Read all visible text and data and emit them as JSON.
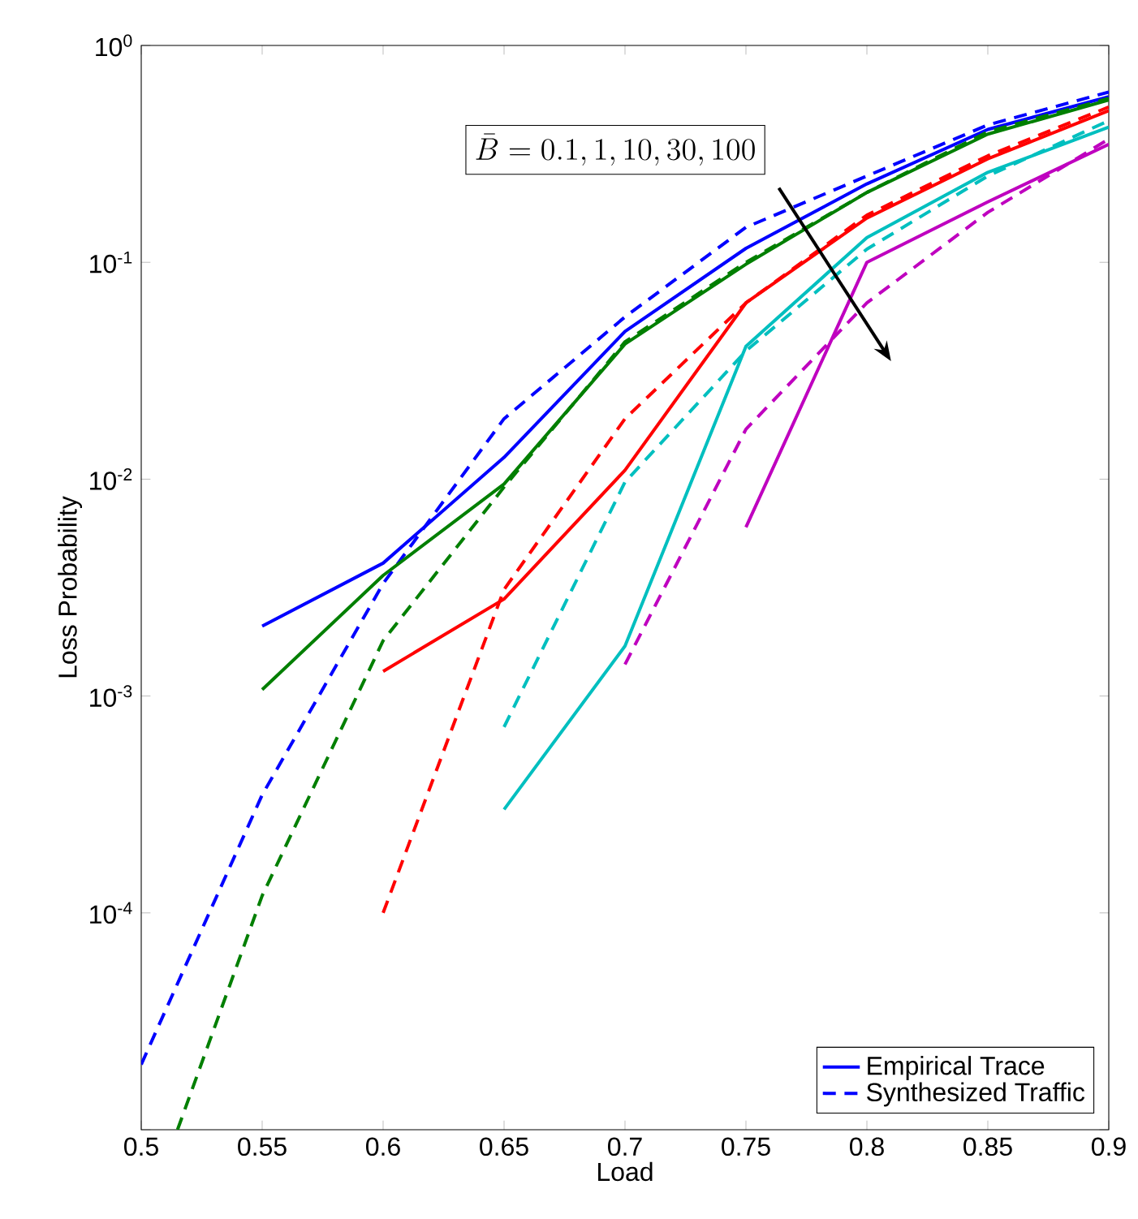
{
  "chart_data": {
    "type": "line",
    "xlabel": "Load",
    "ylabel": "Loss Probability",
    "log": "y",
    "xlim": [
      0.5,
      0.9
    ],
    "xticks": [
      0.5,
      0.55,
      0.6,
      0.65,
      0.7,
      0.75,
      0.8,
      0.85,
      0.9
    ],
    "ylim": [
      1e-05,
      1
    ],
    "yticks": [
      {
        "value": 1e-05,
        "label": null
      },
      {
        "value": 0.0001,
        "label": "10$^{-4}$"
      },
      {
        "value": 0.001,
        "label": "10$^{-3}$"
      },
      {
        "value": 0.01,
        "label": "10$^{-2}$"
      },
      {
        "value": 0.1,
        "label": "10$^{-1}$"
      },
      {
        "value": 1,
        "label": "10$^{0}$"
      }
    ],
    "legend": "bottom right",
    "marker": "none",
    "line_style": "solid",
    "annotations": [
      "\\bar{B}=0.1,1,10,30,100"
    ],
    "series": [
      {
        "name": "Empirical Trace",
        "color": "#0000ff",
        "x": [
          0.55,
          0.6,
          0.65,
          0.7,
          0.75,
          0.8,
          0.85,
          0.9
        ],
        "values": [
          0.0021,
          0.0041,
          0.0126,
          0.048,
          0.116,
          0.23,
          0.41,
          0.58
        ]
      },
      {
        "name": "Synthesized Traffic",
        "color": "#0000ff",
        "line_style": "dashed",
        "x": [
          0.5,
          0.55,
          0.6,
          0.65,
          0.7,
          0.75,
          0.8,
          0.85,
          0.9
        ],
        "values": [
          2e-05,
          0.00035,
          0.0033,
          0.019,
          0.056,
          0.145,
          0.25,
          0.43,
          0.61
        ]
      },
      {
        "color": "#007f00",
        "x": [
          0.55,
          0.6,
          0.65,
          0.7,
          0.75,
          0.8,
          0.85,
          0.9
        ],
        "values": [
          0.00107,
          0.0036,
          0.0095,
          0.042,
          0.098,
          0.21,
          0.39,
          0.56
        ]
      },
      {
        "color": "#007f00",
        "line_style": "dashed",
        "x": [
          0.515,
          0.55,
          0.6,
          0.65,
          0.7,
          0.75,
          0.8,
          0.85,
          0.9
        ],
        "values": [
          1e-05,
          0.00012,
          0.0018,
          0.0092,
          0.043,
          0.1,
          0.21,
          0.4,
          0.57
        ]
      },
      {
        "color": "#ff0000",
        "x": [
          0.6,
          0.65,
          0.7,
          0.75,
          0.8,
          0.85,
          0.9
        ],
        "values": [
          0.0013,
          0.0028,
          0.011,
          0.065,
          0.16,
          0.3,
          0.5
        ]
      },
      {
        "color": "#ff0000",
        "line_style": "dashed",
        "x": [
          0.6,
          0.65,
          0.7,
          0.75,
          0.8,
          0.85,
          0.9
        ],
        "values": [
          0.0001,
          0.0031,
          0.019,
          0.065,
          0.165,
          0.31,
          0.52
        ]
      },
      {
        "color": "#00bfbf",
        "x": [
          0.65,
          0.7,
          0.75,
          0.8,
          0.85,
          0.9
        ],
        "values": [
          0.0003,
          0.0017,
          0.041,
          0.13,
          0.26,
          0.42
        ]
      },
      {
        "color": "#00bfbf",
        "line_style": "dashed",
        "x": [
          0.65,
          0.7,
          0.75,
          0.8,
          0.85,
          0.9
        ],
        "values": [
          0.00072,
          0.0097,
          0.039,
          0.115,
          0.25,
          0.45
        ]
      },
      {
        "color": "#bf00bf",
        "x": [
          0.75,
          0.8,
          0.85,
          0.9
        ],
        "values": [
          0.006,
          0.1,
          0.19,
          0.35
        ]
      },
      {
        "color": "#bf00bf",
        "line_style": "dashed",
        "x": [
          0.7,
          0.75,
          0.8,
          0.85,
          0.9
        ],
        "values": [
          0.0014,
          0.017,
          0.065,
          0.17,
          0.37
        ]
      }
    ]
  }
}
